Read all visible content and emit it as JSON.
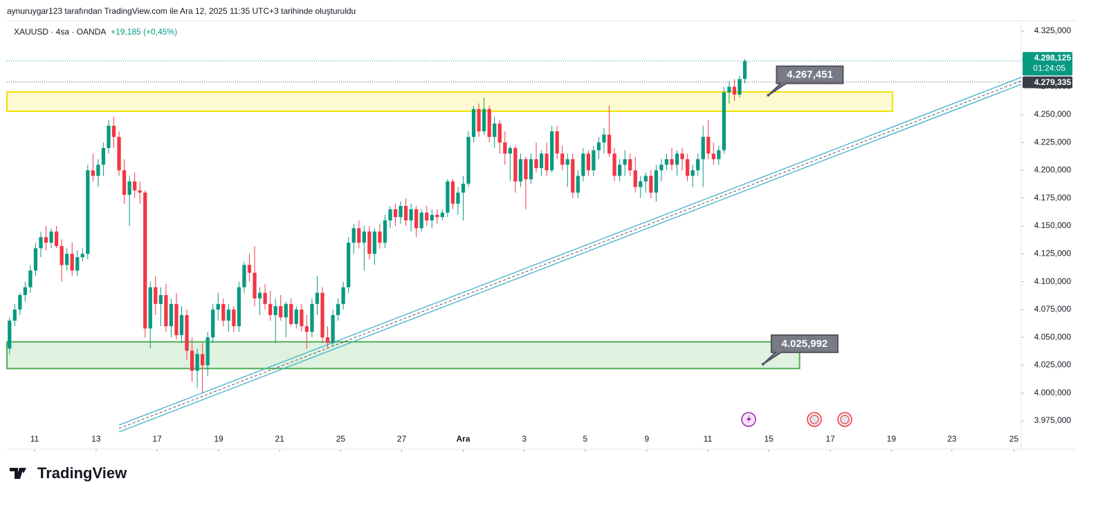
{
  "chart_data": {
    "type": "candlestick",
    "header": "aynuruygar123 tarafından TradingView.com ile Ara 12, 2025 11:35 UTC+3 tarihinde oluşturuldu",
    "symbol": "XAUUSD · 4sa · OANDA",
    "change": "+19,185 (+0,45%)",
    "brand": "TradingView",
    "up_color": "#089981",
    "down_color": "#f23645",
    "xlim": [
      -0.5,
      194
    ],
    "xticks": [
      {
        "value": 4.8,
        "label": "11"
      },
      {
        "value": 16.6,
        "label": "13"
      },
      {
        "value": 28.3,
        "label": "17"
      },
      {
        "value": 40.1,
        "label": "19"
      },
      {
        "value": 51.8,
        "label": "21"
      },
      {
        "value": 63.5,
        "label": "25"
      },
      {
        "value": 75.2,
        "label": "27"
      },
      {
        "value": 87,
        "label": "Ara"
      },
      {
        "value": 98.7,
        "label": "3"
      },
      {
        "value": 110.4,
        "label": "5"
      },
      {
        "value": 122.2,
        "label": "9"
      },
      {
        "value": 133.9,
        "label": "11"
      },
      {
        "value": 145.6,
        "label": "15"
      },
      {
        "value": 157.4,
        "label": "17"
      },
      {
        "value": 169.1,
        "label": "19"
      },
      {
        "value": 180.7,
        "label": "23"
      },
      {
        "value": 192.6,
        "label": "25"
      }
    ],
    "ylim": [
      3949.6,
      4334.3
    ],
    "yticks": [
      {
        "value": 4325,
        "label": "4.325,000"
      },
      {
        "value": 4300,
        "label": "4.300,000"
      },
      {
        "value": 4275,
        "label": "4.275,000"
      },
      {
        "value": 4250,
        "label": "4.250,000"
      },
      {
        "value": 4225,
        "label": "4.225,000"
      },
      {
        "value": 4200,
        "label": "4.200,000"
      },
      {
        "value": 4175,
        "label": "4.175,000"
      },
      {
        "value": 4150,
        "label": "4.150,000"
      },
      {
        "value": 4125,
        "label": "4.125,000"
      },
      {
        "value": 4100,
        "label": "4.100,000"
      },
      {
        "value": 4075,
        "label": "4.075,000"
      },
      {
        "value": 4050,
        "label": "4.050,000"
      },
      {
        "value": 4025,
        "label": "4.025,000"
      },
      {
        "value": 4000,
        "label": "4.000,000"
      },
      {
        "value": 3975,
        "label": "3.975,000"
      }
    ],
    "last_price": {
      "value": 4298.125,
      "label": "4.298,125"
    },
    "countdown": "01:24:05",
    "prev_close": {
      "value": 4279.335,
      "label": "4.279,335"
    },
    "zones": [
      {
        "color": "#f2e200",
        "x": [
          -0.5,
          169.3
        ],
        "y": [
          4253,
          4270.4
        ]
      },
      {
        "color": "#4caf50",
        "x": [
          -0.5,
          151.5
        ],
        "y": [
          4022,
          4046
        ]
      }
    ],
    "trend": {
      "color": "#3fb1c9",
      "x": [
        21,
        194
      ],
      "y": [
        3968.2,
        4280.3
      ]
    },
    "callouts": [
      {
        "value": 4267.451,
        "label": "4.267,451",
        "x": 145.5
      },
      {
        "value": 4025.992,
        "label": "4.025,992",
        "x": 144.5
      }
    ],
    "ohlc": [
      [
        4040,
        4068,
        4035,
        4065
      ],
      [
        4065,
        4080,
        4060,
        4075
      ],
      [
        4075,
        4090,
        4070,
        4088
      ],
      [
        4088,
        4100,
        4082,
        4095
      ],
      [
        4095,
        4115,
        4090,
        4110
      ],
      [
        4110,
        4135,
        4105,
        4130
      ],
      [
        4130,
        4145,
        4122,
        4140
      ],
      [
        4140,
        4150,
        4128,
        4135
      ],
      [
        4135,
        4148,
        4130,
        4145
      ],
      [
        4145,
        4150,
        4130,
        4132
      ],
      [
        4132,
        4138,
        4100,
        4115
      ],
      [
        4115,
        4130,
        4110,
        4125
      ],
      [
        4125,
        4135,
        4105,
        4110
      ],
      [
        4110,
        4128,
        4105,
        4122
      ],
      [
        4122,
        4130,
        4118,
        4125
      ],
      [
        4125,
        4205,
        4120,
        4200
      ],
      [
        4200,
        4215,
        4190,
        4195
      ],
      [
        4195,
        4210,
        4185,
        4205
      ],
      [
        4205,
        4225,
        4195,
        4220
      ],
      [
        4220,
        4245,
        4215,
        4240
      ],
      [
        4240,
        4248,
        4220,
        4230
      ],
      [
        4230,
        4235,
        4195,
        4200
      ],
      [
        4200,
        4210,
        4170,
        4178
      ],
      [
        4178,
        4195,
        4150,
        4190
      ],
      [
        4190,
        4198,
        4175,
        4182
      ],
      [
        4182,
        4190,
        4170,
        4180
      ],
      [
        4180,
        4182,
        4050,
        4058
      ],
      [
        4058,
        4100,
        4040,
        4095
      ],
      [
        4095,
        4105,
        4070,
        4080
      ],
      [
        4080,
        4095,
        4060,
        4088
      ],
      [
        4088,
        4098,
        4055,
        4060
      ],
      [
        4060,
        4085,
        4050,
        4080
      ],
      [
        4080,
        4090,
        4048,
        4052
      ],
      [
        4052,
        4078,
        4045,
        4070
      ],
      [
        4070,
        4075,
        4030,
        4038
      ],
      [
        4038,
        4050,
        4010,
        4020
      ],
      [
        4020,
        4040,
        4005,
        4035
      ],
      [
        4035,
        4045,
        4000,
        4025
      ],
      [
        4025,
        4055,
        4015,
        4050
      ],
      [
        4050,
        4080,
        4045,
        4075
      ],
      [
        4075,
        4090,
        4065,
        4080
      ],
      [
        4080,
        4085,
        4060,
        4065
      ],
      [
        4065,
        4080,
        4055,
        4075
      ],
      [
        4075,
        4078,
        4055,
        4060
      ],
      [
        4060,
        4100,
        4055,
        4095
      ],
      [
        4095,
        4118,
        4090,
        4115
      ],
      [
        4115,
        4125,
        4100,
        4108
      ],
      [
        4108,
        4132,
        4078,
        4085
      ],
      [
        4085,
        4095,
        4070,
        4090
      ],
      [
        4090,
        4098,
        4075,
        4080
      ],
      [
        4080,
        4092,
        4065,
        4070
      ],
      [
        4070,
        4085,
        4045,
        4078
      ],
      [
        4078,
        4088,
        4065,
        4068
      ],
      [
        4068,
        4082,
        4050,
        4080
      ],
      [
        4080,
        4085,
        4060,
        4062
      ],
      [
        4062,
        4078,
        4058,
        4075
      ],
      [
        4075,
        4080,
        4055,
        4060
      ],
      [
        4060,
        4070,
        4040,
        4055
      ],
      [
        4055,
        4085,
        4050,
        4080
      ],
      [
        4080,
        4105,
        4070,
        4090
      ],
      [
        4090,
        4095,
        4045,
        4050
      ],
      [
        4050,
        4060,
        4040,
        4045
      ],
      [
        4045,
        4075,
        4042,
        4070
      ],
      [
        4070,
        4085,
        4065,
        4080
      ],
      [
        4080,
        4100,
        4075,
        4095
      ],
      [
        4095,
        4140,
        4090,
        4135
      ],
      [
        4135,
        4152,
        4125,
        4148
      ],
      [
        4148,
        4155,
        4130,
        4135
      ],
      [
        4135,
        4150,
        4110,
        4145
      ],
      [
        4145,
        4150,
        4120,
        4125
      ],
      [
        4125,
        4148,
        4115,
        4145
      ],
      [
        4145,
        4152,
        4130,
        4135
      ],
      [
        4135,
        4160,
        4130,
        4155
      ],
      [
        4155,
        4168,
        4148,
        4165
      ],
      [
        4165,
        4170,
        4150,
        4158
      ],
      [
        4158,
        4172,
        4152,
        4168
      ],
      [
        4168,
        4175,
        4150,
        4155
      ],
      [
        4155,
        4170,
        4145,
        4165
      ],
      [
        4165,
        4168,
        4140,
        4148
      ],
      [
        4148,
        4165,
        4145,
        4162
      ],
      [
        4162,
        4168,
        4150,
        4155
      ],
      [
        4155,
        4165,
        4148,
        4160
      ],
      [
        4160,
        4165,
        4152,
        4158
      ],
      [
        4158,
        4165,
        4155,
        4162
      ],
      [
        4162,
        4192,
        4158,
        4190
      ],
      [
        4190,
        4192,
        4165,
        4170
      ],
      [
        4170,
        4185,
        4160,
        4180
      ],
      [
        4180,
        4195,
        4155,
        4188
      ],
      [
        4188,
        4235,
        4185,
        4230
      ],
      [
        4230,
        4258,
        4225,
        4255
      ],
      [
        4255,
        4260,
        4230,
        4235
      ],
      [
        4235,
        4265,
        4232,
        4255
      ],
      [
        4255,
        4258,
        4225,
        4230
      ],
      [
        4230,
        4248,
        4220,
        4242
      ],
      [
        4242,
        4245,
        4215,
        4225
      ],
      [
        4225,
        4235,
        4205,
        4215
      ],
      [
        4215,
        4222,
        4190,
        4220
      ],
      [
        4220,
        4222,
        4180,
        4190
      ],
      [
        4190,
        4215,
        4185,
        4210
      ],
      [
        4210,
        4212,
        4165,
        4192
      ],
      [
        4192,
        4215,
        4188,
        4210
      ],
      [
        4210,
        4225,
        4198,
        4202
      ],
      [
        4202,
        4218,
        4195,
        4215
      ],
      [
        4215,
        4225,
        4195,
        4200
      ],
      [
        4200,
        4240,
        4198,
        4235
      ],
      [
        4235,
        4240,
        4210,
        4215
      ],
      [
        4215,
        4222,
        4200,
        4205
      ],
      [
        4205,
        4215,
        4185,
        4210
      ],
      [
        4210,
        4215,
        4175,
        4180
      ],
      [
        4180,
        4200,
        4175,
        4195
      ],
      [
        4195,
        4220,
        4190,
        4215
      ],
      [
        4215,
        4218,
        4195,
        4200
      ],
      [
        4200,
        4222,
        4195,
        4218
      ],
      [
        4218,
        4230,
        4210,
        4225
      ],
      [
        4225,
        4238,
        4215,
        4232
      ],
      [
        4232,
        4258,
        4212,
        4215
      ],
      [
        4215,
        4220,
        4190,
        4195
      ],
      [
        4195,
        4210,
        4190,
        4205
      ],
      [
        4205,
        4218,
        4195,
        4210
      ],
      [
        4210,
        4215,
        4195,
        4200
      ],
      [
        4200,
        4212,
        4180,
        4185
      ],
      [
        4185,
        4195,
        4175,
        4190
      ],
      [
        4190,
        4198,
        4180,
        4195
      ],
      [
        4195,
        4200,
        4175,
        4180
      ],
      [
        4180,
        4205,
        4172,
        4200
      ],
      [
        4200,
        4210,
        4190,
        4205
      ],
      [
        4205,
        4215,
        4200,
        4210
      ],
      [
        4210,
        4220,
        4200,
        4205
      ],
      [
        4205,
        4218,
        4195,
        4215
      ],
      [
        4215,
        4220,
        4200,
        4210
      ],
      [
        4210,
        4215,
        4190,
        4195
      ],
      [
        4195,
        4205,
        4185,
        4200
      ],
      [
        4200,
        4215,
        4195,
        4210
      ],
      [
        4210,
        4240,
        4185,
        4230
      ],
      [
        4230,
        4245,
        4210,
        4215
      ],
      [
        4215,
        4225,
        4205,
        4210
      ],
      [
        4210,
        4222,
        4205,
        4218
      ],
      [
        4218,
        4275,
        4215,
        4270
      ],
      [
        4270,
        4280,
        4260,
        4275
      ],
      [
        4275,
        4282,
        4262,
        4268
      ],
      [
        4268,
        4285,
        4265,
        4282
      ],
      [
        4282,
        4300,
        4278,
        4298
      ]
    ]
  }
}
